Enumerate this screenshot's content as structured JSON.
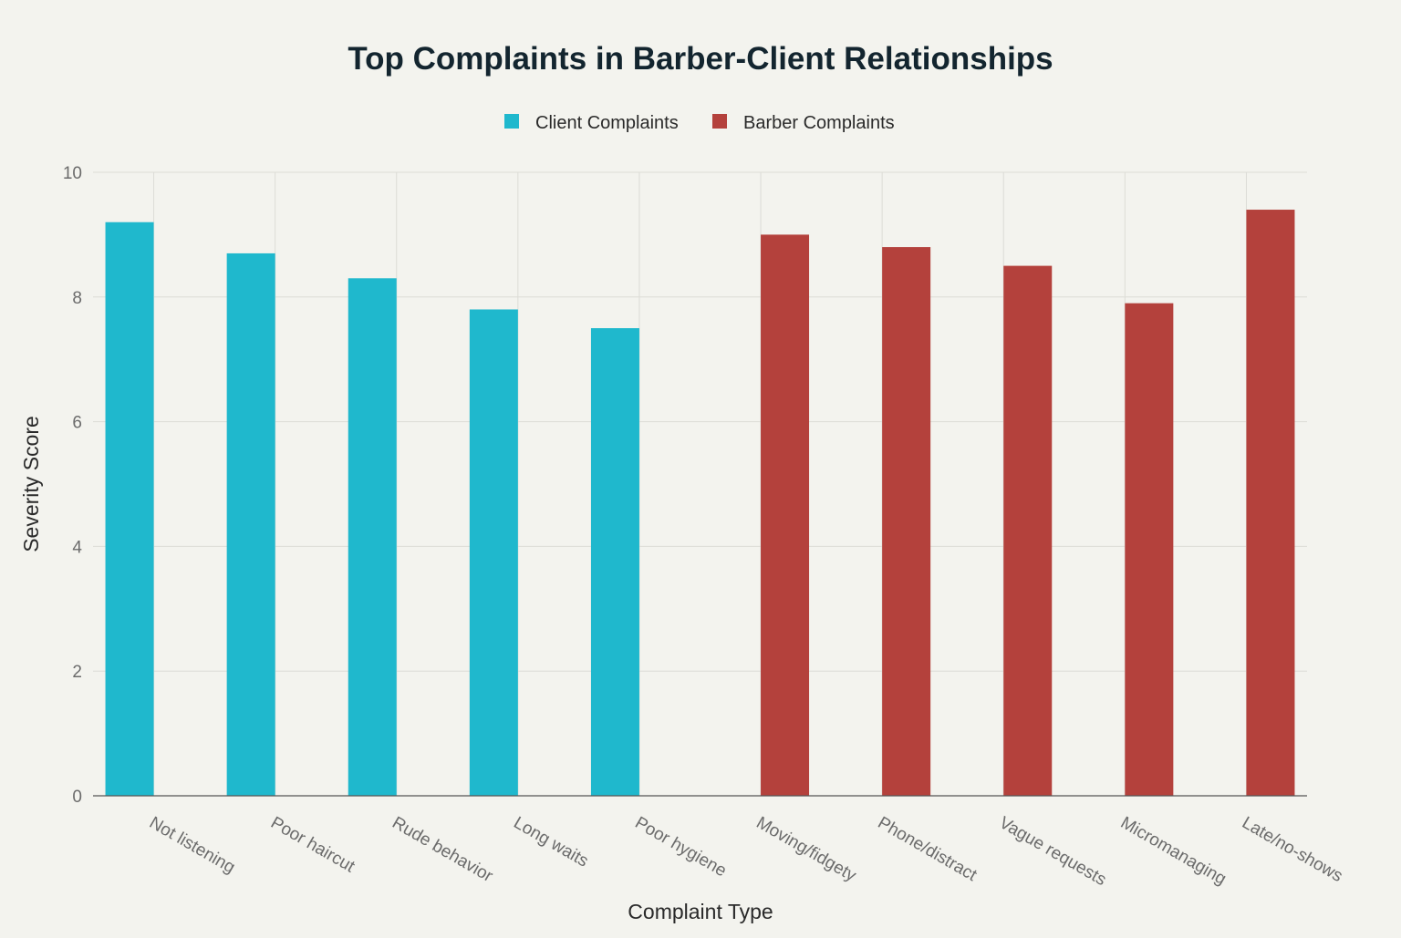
{
  "chart_data": {
    "type": "bar",
    "title": "Top Complaints in Barber-Client Relationships",
    "xlabel": "Complaint Type",
    "ylabel": "Severity Score",
    "ylim": [
      0,
      10
    ],
    "yticks": [
      0,
      2,
      4,
      6,
      8,
      10
    ],
    "grid": true,
    "legend_position": "top-center",
    "categories": [
      "Not listening",
      "Poor haircut",
      "Rude behavior",
      "Long waits",
      "Poor hygiene",
      "Moving/fidgety",
      "Phone/distract",
      "Vague requests",
      "Micromanaging",
      "Late/no-shows"
    ],
    "series": [
      {
        "name": "Client Complaints",
        "color": "#1FB8CD",
        "values": [
          9.2,
          8.7,
          8.3,
          7.8,
          7.5,
          null,
          null,
          null,
          null,
          null
        ]
      },
      {
        "name": "Barber Complaints",
        "color": "#B4413C",
        "values": [
          null,
          null,
          null,
          null,
          null,
          9.0,
          8.8,
          8.5,
          7.9,
          9.4
        ]
      }
    ]
  }
}
